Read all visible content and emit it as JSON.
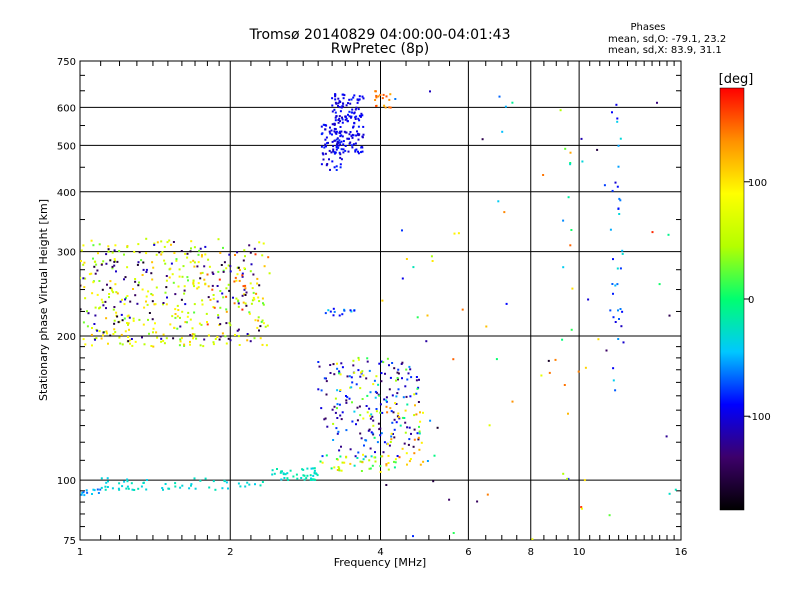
{
  "chart_data": {
    "type": "scatter",
    "title": "Tromsø 20140829 04:00:00-04:01:43",
    "subtitle": "RwPretec (8p)",
    "xlabel": "Frequency [MHz]",
    "ylabel": "Stationary phase Virtual Height [km]",
    "xscale": "log",
    "yscale": "log",
    "xlim": [
      1,
      16
    ],
    "ylim": [
      75,
      750
    ],
    "x_ticks": [
      1,
      2,
      4,
      6,
      8,
      10,
      16
    ],
    "x_tick_labels": [
      "1",
      "2",
      "4",
      "6",
      "8",
      "10",
      "16"
    ],
    "y_ticks": [
      75,
      100,
      200,
      300,
      400,
      500,
      600,
      750
    ],
    "y_tick_labels": [
      "75",
      "100",
      "200",
      "300",
      "400",
      "500",
      "600",
      "750"
    ],
    "grid": true,
    "stats": {
      "heading": "Phases",
      "line_o": "mean, sd,O: -79.1, 23.2",
      "line_x": "mean, sd,X:  83.9, 31.1"
    },
    "colorbar": {
      "label": "[deg]",
      "range": [
        -180,
        180
      ],
      "ticks": [
        100,
        0,
        -100
      ],
      "tick_labels": [
        "100",
        "0",
        "-100"
      ],
      "stops": [
        "#000000",
        "#3d006b",
        "#0000ff",
        "#00c8ff",
        "#00ff70",
        "#b4ff00",
        "#ffff00",
        "#ff9000",
        "#ff0000"
      ]
    },
    "clusters": [
      {
        "x": [
          1.0,
          1.1
        ],
        "y": [
          93,
          96
        ],
        "phase": [
          -70,
          -40
        ],
        "n": 12,
        "seed": 1
      },
      {
        "x": [
          1.1,
          2.4
        ],
        "y": [
          95,
          101
        ],
        "phase": [
          -40,
          -20
        ],
        "n": 60,
        "seed": 2
      },
      {
        "x": [
          2.4,
          3.0
        ],
        "y": [
          100,
          106
        ],
        "phase": [
          -40,
          -10
        ],
        "n": 45,
        "seed": 3
      },
      {
        "x": [
          3.0,
          4.3
        ],
        "y": [
          104,
          113
        ],
        "phase": [
          -30,
          150
        ],
        "n": 45,
        "seed": 4
      },
      {
        "x": [
          3.0,
          4.8
        ],
        "y": [
          112,
          180
        ],
        "phase": [
          -150,
          -60
        ],
        "n": 160,
        "seed": 5
      },
      {
        "x": [
          3.2,
          4.8
        ],
        "y": [
          120,
          180
        ],
        "phase": [
          -60,
          100
        ],
        "n": 60,
        "seed": 6
      },
      {
        "x": [
          4.1,
          4.9
        ],
        "y": [
          107,
          150
        ],
        "phase": [
          80,
          150
        ],
        "n": 30,
        "seed": 7
      },
      {
        "x": [
          1.0,
          2.4
        ],
        "y": [
          190,
          320
        ],
        "phase": [
          20,
          120
        ],
        "n": 330,
        "seed": 8
      },
      {
        "x": [
          1.0,
          2.4
        ],
        "y": [
          195,
          315
        ],
        "phase": [
          -170,
          -100
        ],
        "n": 130,
        "seed": 9
      },
      {
        "x": [
          1.8,
          2.4
        ],
        "y": [
          200,
          300
        ],
        "phase": [
          120,
          170
        ],
        "n": 25,
        "seed": 10
      },
      {
        "x": [
          3.2,
          3.7
        ],
        "y": [
          480,
          640
        ],
        "phase": [
          -110,
          -80
        ],
        "n": 170,
        "seed": 11
      },
      {
        "x": [
          3.05,
          3.35
        ],
        "y": [
          440,
          560
        ],
        "phase": [
          -110,
          -80
        ],
        "n": 60,
        "seed": 12
      },
      {
        "x": [
          3.9,
          4.2
        ],
        "y": [
          590,
          650
        ],
        "phase": [
          120,
          160
        ],
        "n": 18,
        "seed": 13
      },
      {
        "x": [
          3.1,
          3.6
        ],
        "y": [
          220,
          228
        ],
        "phase": [
          -110,
          -40
        ],
        "n": 14,
        "seed": 14
      },
      {
        "x": [
          4.0,
          16.0
        ],
        "y": [
          75,
          650
        ],
        "phase": [
          -170,
          170
        ],
        "n": 70,
        "seed": 15
      },
      {
        "x": [
          11.5,
          12.3
        ],
        "y": [
          150,
          630
        ],
        "phase": [
          -110,
          -30
        ],
        "n": 38,
        "seed": 16
      },
      {
        "x": [
          9.2,
          9.7
        ],
        "y": [
          100,
          500
        ],
        "phase": [
          -60,
          160
        ],
        "n": 14,
        "seed": 17
      }
    ]
  }
}
